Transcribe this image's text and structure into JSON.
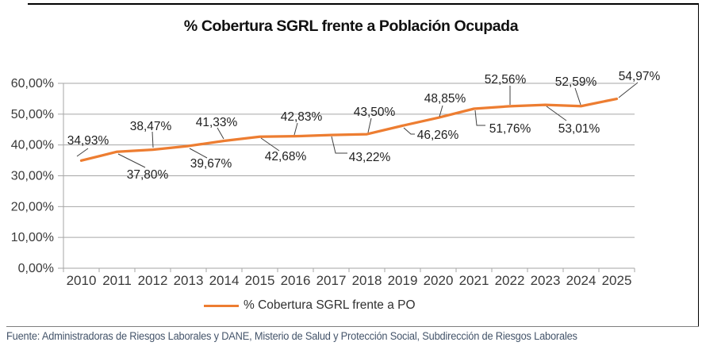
{
  "chart": {
    "title": "% Cobertura SGRL frente a Población Ocupada",
    "legend_label": "% Cobertura SGRL frente a PO"
  },
  "chart_data": {
    "type": "line",
    "title": "% Cobertura SGRL frente a Población Ocupada",
    "x": [
      "2010",
      "2011",
      "2012",
      "2013",
      "2014",
      "2015",
      "2016",
      "2017",
      "2018",
      "2019",
      "2020",
      "2021",
      "2022",
      "2023",
      "2024",
      "2025"
    ],
    "series": [
      {
        "name": "% Cobertura SGRL frente a PO",
        "values": [
          34.93,
          37.8,
          38.47,
          39.67,
          41.33,
          42.68,
          42.83,
          43.22,
          43.5,
          46.26,
          48.85,
          51.76,
          52.56,
          53.01,
          52.59,
          54.97
        ]
      }
    ],
    "data_labels": [
      "34,93%",
      "37,80%",
      "38,47%",
      "39,67%",
      "41,33%",
      "42,68%",
      "42,83%",
      "43,22%",
      "43,50%",
      "46,26%",
      "48,85%",
      "51,76%",
      "52,56%",
      "53,01%",
      "52,59%",
      "54,97%"
    ],
    "y_ticks": [
      "0,00%",
      "10,00%",
      "20,00%",
      "30,00%",
      "40,00%",
      "50,00%",
      "60,00%"
    ],
    "ylim": [
      0,
      60
    ],
    "xlabel": "",
    "ylabel": "",
    "grid": true,
    "legend_position": "bottom"
  },
  "colors": {
    "line": "#ED7D31",
    "grid": "#A6A6A6",
    "axis": "#A6A6A6",
    "axis_text": "#3a3a3a",
    "label_text": "#1f1f1f",
    "leader": "#404040",
    "footer_text": "#44546A"
  },
  "footer": {
    "text": "Fuente: Administradoras de Riesgos Laborales y DANE, Misterio de Salud y Protección Social, Subdirección de Riesgos Laborales"
  }
}
